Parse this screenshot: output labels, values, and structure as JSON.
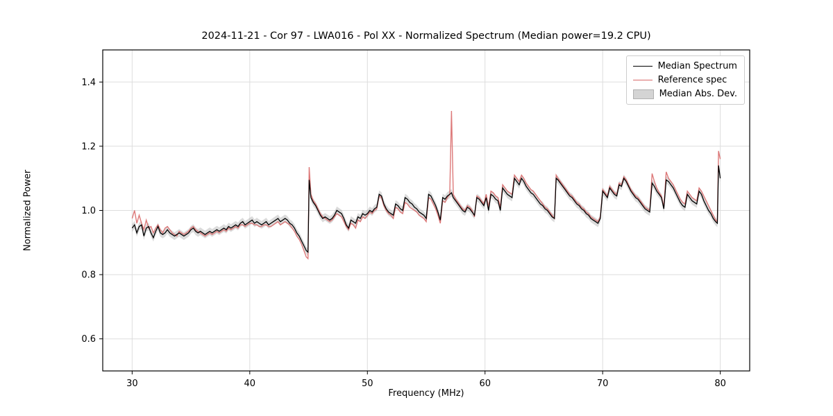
{
  "title": "2024-11-21 - Cor 97 - LWA016 - Pol XX - Normalized Spectrum (Median power=19.2 CPU)",
  "axes": {
    "xlabel": "Frequency (MHz)",
    "ylabel": "Normalized Power"
  },
  "legend": {
    "items": [
      {
        "label": "Median Spectrum",
        "color": "#000000",
        "type": "line"
      },
      {
        "label": "Reference spec",
        "color": "#d96a6a",
        "type": "line"
      },
      {
        "label": "Median Abs. Dev.",
        "color": "#d4d4d4",
        "type": "patch"
      }
    ]
  },
  "colors": {
    "median": "#000000",
    "reference": "#d96a6a",
    "mad_band": "#999999"
  },
  "chart_data": {
    "type": "line",
    "title": "2024-11-21 - Cor 97 - LWA016 - Pol XX - Normalized Spectrum (Median power=19.2 CPU)",
    "xlabel": "Frequency (MHz)",
    "ylabel": "Normalized Power",
    "xlim": [
      27.5,
      82.5
    ],
    "ylim": [
      0.5,
      1.5
    ],
    "xticks": [
      30,
      40,
      50,
      60,
      70,
      80
    ],
    "yticks": [
      0.6,
      0.8,
      1.0,
      1.2,
      1.4
    ],
    "grid": true,
    "legend_position": "upper right",
    "series_names": [
      "Median Spectrum",
      "Reference spec"
    ],
    "mad_halfwidth": 0.012,
    "points_format": [
      "frequency_mhz",
      "median_spectrum",
      "reference_spec"
    ],
    "points": [
      [
        30.0,
        0.945,
        0.975
      ],
      [
        30.2,
        0.955,
        1.0
      ],
      [
        30.4,
        0.93,
        0.96
      ],
      [
        30.6,
        0.95,
        0.985
      ],
      [
        30.8,
        0.955,
        0.96
      ],
      [
        31.0,
        0.92,
        0.94
      ],
      [
        31.2,
        0.945,
        0.97
      ],
      [
        31.4,
        0.95,
        0.945
      ],
      [
        31.6,
        0.93,
        0.95
      ],
      [
        31.8,
        0.915,
        0.93
      ],
      [
        32.0,
        0.935,
        0.945
      ],
      [
        32.2,
        0.95,
        0.955
      ],
      [
        32.4,
        0.93,
        0.94
      ],
      [
        32.6,
        0.925,
        0.93
      ],
      [
        32.8,
        0.93,
        0.945
      ],
      [
        33.0,
        0.94,
        0.95
      ],
      [
        33.2,
        0.93,
        0.94
      ],
      [
        33.4,
        0.925,
        0.93
      ],
      [
        33.6,
        0.92,
        0.925
      ],
      [
        33.8,
        0.925,
        0.92
      ],
      [
        34.0,
        0.93,
        0.935
      ],
      [
        34.2,
        0.925,
        0.93
      ],
      [
        34.4,
        0.92,
        0.925
      ],
      [
        34.6,
        0.925,
        0.93
      ],
      [
        34.8,
        0.93,
        0.935
      ],
      [
        35.0,
        0.94,
        0.945
      ],
      [
        35.2,
        0.945,
        0.95
      ],
      [
        35.4,
        0.935,
        0.94
      ],
      [
        35.6,
        0.93,
        0.935
      ],
      [
        35.8,
        0.935,
        0.93
      ],
      [
        36.0,
        0.93,
        0.925
      ],
      [
        36.2,
        0.925,
        0.92
      ],
      [
        36.4,
        0.93,
        0.925
      ],
      [
        36.6,
        0.935,
        0.93
      ],
      [
        36.8,
        0.93,
        0.925
      ],
      [
        37.0,
        0.935,
        0.93
      ],
      [
        37.2,
        0.94,
        0.935
      ],
      [
        37.4,
        0.935,
        0.93
      ],
      [
        37.6,
        0.94,
        0.935
      ],
      [
        37.8,
        0.945,
        0.94
      ],
      [
        38.0,
        0.94,
        0.935
      ],
      [
        38.2,
        0.95,
        0.945
      ],
      [
        38.4,
        0.945,
        0.94
      ],
      [
        38.6,
        0.95,
        0.945
      ],
      [
        38.8,
        0.955,
        0.95
      ],
      [
        39.0,
        0.95,
        0.945
      ],
      [
        39.2,
        0.96,
        0.955
      ],
      [
        39.4,
        0.965,
        0.955
      ],
      [
        39.6,
        0.955,
        0.95
      ],
      [
        39.8,
        0.96,
        0.955
      ],
      [
        40.0,
        0.965,
        0.96
      ],
      [
        40.2,
        0.97,
        0.96
      ],
      [
        40.4,
        0.96,
        0.955
      ],
      [
        40.6,
        0.965,
        0.955
      ],
      [
        40.8,
        0.96,
        0.95
      ],
      [
        41.0,
        0.955,
        0.95
      ],
      [
        41.2,
        0.96,
        0.955
      ],
      [
        41.4,
        0.965,
        0.955
      ],
      [
        41.6,
        0.955,
        0.95
      ],
      [
        41.8,
        0.96,
        0.95
      ],
      [
        42.0,
        0.965,
        0.955
      ],
      [
        42.2,
        0.97,
        0.96
      ],
      [
        42.4,
        0.975,
        0.965
      ],
      [
        42.6,
        0.965,
        0.955
      ],
      [
        42.8,
        0.97,
        0.96
      ],
      [
        43.0,
        0.975,
        0.965
      ],
      [
        43.2,
        0.97,
        0.96
      ],
      [
        43.4,
        0.96,
        0.955
      ],
      [
        43.6,
        0.955,
        0.945
      ],
      [
        43.8,
        0.945,
        0.935
      ],
      [
        44.0,
        0.93,
        0.92
      ],
      [
        44.2,
        0.92,
        0.91
      ],
      [
        44.4,
        0.905,
        0.895
      ],
      [
        44.6,
        0.89,
        0.875
      ],
      [
        44.8,
        0.875,
        0.855
      ],
      [
        44.95,
        0.87,
        0.85
      ],
      [
        45.05,
        1.095,
        1.135
      ],
      [
        45.2,
        1.04,
        1.05
      ],
      [
        45.4,
        1.025,
        1.03
      ],
      [
        45.6,
        1.015,
        1.02
      ],
      [
        45.8,
        1.0,
        1.005
      ],
      [
        46.0,
        0.985,
        0.99
      ],
      [
        46.2,
        0.975,
        0.98
      ],
      [
        46.4,
        0.98,
        0.975
      ],
      [
        46.6,
        0.975,
        0.97
      ],
      [
        46.8,
        0.97,
        0.965
      ],
      [
        47.0,
        0.975,
        0.97
      ],
      [
        47.2,
        0.985,
        0.98
      ],
      [
        47.4,
        1.0,
        0.99
      ],
      [
        47.6,
        0.995,
        0.985
      ],
      [
        47.8,
        0.99,
        0.98
      ],
      [
        48.0,
        0.975,
        0.965
      ],
      [
        48.2,
        0.955,
        0.95
      ],
      [
        48.4,
        0.945,
        0.94
      ],
      [
        48.6,
        0.97,
        0.96
      ],
      [
        48.8,
        0.965,
        0.955
      ],
      [
        49.0,
        0.96,
        0.945
      ],
      [
        49.2,
        0.98,
        0.97
      ],
      [
        49.4,
        0.975,
        0.965
      ],
      [
        49.6,
        0.99,
        0.98
      ],
      [
        49.8,
        0.985,
        0.975
      ],
      [
        50.0,
        0.99,
        0.985
      ],
      [
        50.2,
        1.0,
        0.995
      ],
      [
        50.4,
        0.995,
        0.99
      ],
      [
        50.6,
        1.005,
        1.0
      ],
      [
        50.8,
        1.01,
        1.005
      ],
      [
        51.0,
        1.05,
        1.045
      ],
      [
        51.2,
        1.045,
        1.04
      ],
      [
        51.4,
        1.02,
        1.015
      ],
      [
        51.6,
        1.005,
        1.0
      ],
      [
        51.8,
        0.995,
        0.99
      ],
      [
        52.0,
        0.99,
        0.985
      ],
      [
        52.2,
        0.985,
        0.975
      ],
      [
        52.4,
        1.02,
        1.01
      ],
      [
        52.6,
        1.015,
        1.005
      ],
      [
        52.8,
        1.005,
        0.995
      ],
      [
        53.0,
        1.0,
        0.99
      ],
      [
        53.2,
        1.04,
        1.025
      ],
      [
        53.4,
        1.035,
        1.02
      ],
      [
        53.6,
        1.025,
        1.01
      ],
      [
        53.8,
        1.02,
        1.005
      ],
      [
        54.0,
        1.01,
        1.0
      ],
      [
        54.2,
        1.005,
        0.995
      ],
      [
        54.4,
        0.995,
        0.985
      ],
      [
        54.6,
        0.99,
        0.98
      ],
      [
        54.8,
        0.985,
        0.975
      ],
      [
        55.0,
        0.975,
        0.965
      ],
      [
        55.2,
        1.05,
        1.04
      ],
      [
        55.4,
        1.045,
        1.035
      ],
      [
        55.6,
        1.03,
        1.02
      ],
      [
        55.8,
        1.015,
        1.005
      ],
      [
        56.0,
        0.995,
        0.985
      ],
      [
        56.2,
        0.97,
        0.96
      ],
      [
        56.4,
        1.04,
        1.03
      ],
      [
        56.6,
        1.035,
        1.025
      ],
      [
        56.8,
        1.045,
        1.04
      ],
      [
        57.0,
        1.05,
        1.05
      ],
      [
        57.15,
        1.055,
        1.31
      ],
      [
        57.3,
        1.04,
        1.05
      ],
      [
        57.5,
        1.03,
        1.035
      ],
      [
        57.7,
        1.02,
        1.025
      ],
      [
        57.9,
        1.01,
        1.015
      ],
      [
        58.1,
        1.0,
        1.005
      ],
      [
        58.3,
        0.995,
        1.0
      ],
      [
        58.5,
        1.01,
        1.015
      ],
      [
        58.7,
        1.005,
        1.01
      ],
      [
        58.9,
        0.995,
        1.0
      ],
      [
        59.1,
        0.985,
        0.98
      ],
      [
        59.3,
        1.04,
        1.045
      ],
      [
        59.5,
        1.035,
        1.04
      ],
      [
        59.7,
        1.025,
        1.03
      ],
      [
        59.9,
        1.015,
        1.02
      ],
      [
        60.1,
        1.04,
        1.05
      ],
      [
        60.3,
        1.0,
        1.01
      ],
      [
        60.5,
        1.05,
        1.06
      ],
      [
        60.7,
        1.045,
        1.055
      ],
      [
        60.9,
        1.035,
        1.045
      ],
      [
        61.1,
        1.03,
        1.04
      ],
      [
        61.3,
        1.0,
        1.01
      ],
      [
        61.5,
        1.07,
        1.08
      ],
      [
        61.7,
        1.06,
        1.07
      ],
      [
        61.9,
        1.05,
        1.06
      ],
      [
        62.1,
        1.045,
        1.055
      ],
      [
        62.3,
        1.04,
        1.05
      ],
      [
        62.5,
        1.1,
        1.11
      ],
      [
        62.7,
        1.09,
        1.1
      ],
      [
        62.9,
        1.08,
        1.09
      ],
      [
        63.1,
        1.1,
        1.11
      ],
      [
        63.3,
        1.09,
        1.1
      ],
      [
        63.5,
        1.075,
        1.085
      ],
      [
        63.7,
        1.065,
        1.075
      ],
      [
        63.9,
        1.055,
        1.065
      ],
      [
        64.1,
        1.05,
        1.06
      ],
      [
        64.3,
        1.04,
        1.05
      ],
      [
        64.5,
        1.03,
        1.04
      ],
      [
        64.7,
        1.02,
        1.03
      ],
      [
        64.9,
        1.015,
        1.02
      ],
      [
        65.1,
        1.005,
        1.01
      ],
      [
        65.3,
        1.0,
        1.005
      ],
      [
        65.5,
        0.99,
        0.995
      ],
      [
        65.7,
        0.98,
        0.985
      ],
      [
        65.9,
        0.975,
        0.975
      ],
      [
        66.05,
        1.1,
        1.11
      ],
      [
        66.2,
        1.095,
        1.1
      ],
      [
        66.4,
        1.085,
        1.09
      ],
      [
        66.6,
        1.075,
        1.08
      ],
      [
        66.8,
        1.065,
        1.07
      ],
      [
        67.0,
        1.055,
        1.06
      ],
      [
        67.2,
        1.045,
        1.05
      ],
      [
        67.4,
        1.04,
        1.045
      ],
      [
        67.6,
        1.03,
        1.035
      ],
      [
        67.8,
        1.02,
        1.025
      ],
      [
        68.0,
        1.015,
        1.02
      ],
      [
        68.2,
        1.005,
        1.01
      ],
      [
        68.4,
        1.0,
        1.005
      ],
      [
        68.6,
        0.99,
        0.995
      ],
      [
        68.8,
        0.985,
        0.99
      ],
      [
        69.0,
        0.975,
        0.98
      ],
      [
        69.2,
        0.97,
        0.975
      ],
      [
        69.4,
        0.965,
        0.97
      ],
      [
        69.6,
        0.96,
        0.965
      ],
      [
        69.8,
        0.975,
        0.98
      ],
      [
        70.0,
        1.06,
        1.065
      ],
      [
        70.2,
        1.05,
        1.055
      ],
      [
        70.4,
        1.04,
        1.045
      ],
      [
        70.6,
        1.07,
        1.075
      ],
      [
        70.8,
        1.06,
        1.065
      ],
      [
        71.0,
        1.05,
        1.055
      ],
      [
        71.2,
        1.045,
        1.05
      ],
      [
        71.4,
        1.08,
        1.085
      ],
      [
        71.6,
        1.075,
        1.08
      ],
      [
        71.8,
        1.1,
        1.105
      ],
      [
        72.0,
        1.09,
        1.095
      ],
      [
        72.2,
        1.075,
        1.08
      ],
      [
        72.4,
        1.06,
        1.065
      ],
      [
        72.6,
        1.05,
        1.055
      ],
      [
        72.8,
        1.04,
        1.045
      ],
      [
        73.0,
        1.035,
        1.04
      ],
      [
        73.2,
        1.025,
        1.03
      ],
      [
        73.4,
        1.015,
        1.02
      ],
      [
        73.6,
        1.005,
        1.01
      ],
      [
        73.8,
        1.0,
        1.005
      ],
      [
        74.0,
        0.995,
        1.0
      ],
      [
        74.2,
        1.085,
        1.115
      ],
      [
        74.4,
        1.075,
        1.09
      ],
      [
        74.6,
        1.06,
        1.07
      ],
      [
        74.8,
        1.05,
        1.055
      ],
      [
        75.0,
        1.04,
        1.045
      ],
      [
        75.2,
        1.005,
        1.01
      ],
      [
        75.4,
        1.095,
        1.12
      ],
      [
        75.6,
        1.09,
        1.1
      ],
      [
        75.8,
        1.08,
        1.09
      ],
      [
        76.0,
        1.07,
        1.08
      ],
      [
        76.2,
        1.055,
        1.065
      ],
      [
        76.4,
        1.04,
        1.05
      ],
      [
        76.6,
        1.025,
        1.035
      ],
      [
        76.8,
        1.015,
        1.025
      ],
      [
        77.0,
        1.01,
        1.02
      ],
      [
        77.2,
        1.05,
        1.06
      ],
      [
        77.4,
        1.04,
        1.05
      ],
      [
        77.6,
        1.03,
        1.04
      ],
      [
        77.8,
        1.025,
        1.035
      ],
      [
        78.0,
        1.02,
        1.03
      ],
      [
        78.2,
        1.06,
        1.07
      ],
      [
        78.4,
        1.05,
        1.06
      ],
      [
        78.6,
        1.03,
        1.045
      ],
      [
        78.8,
        1.015,
        1.03
      ],
      [
        79.0,
        1.0,
        1.015
      ],
      [
        79.2,
        0.99,
        1.0
      ],
      [
        79.4,
        0.975,
        0.985
      ],
      [
        79.6,
        0.965,
        0.97
      ],
      [
        79.75,
        0.96,
        0.965
      ],
      [
        79.85,
        1.14,
        1.185
      ],
      [
        80.0,
        1.1,
        1.16
      ]
    ]
  }
}
